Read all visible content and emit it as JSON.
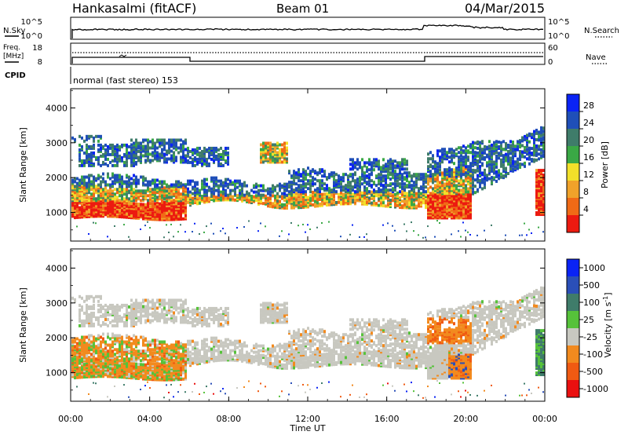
{
  "header": {
    "station": "Hankasalmi (fitACF)",
    "beam": "Beam 01",
    "date": "04/Mar/2015"
  },
  "noise_panel": {
    "left_label": "N.Sky",
    "right_label": "N.Search",
    "left_ticks": [
      "10^5",
      "10^0"
    ],
    "right_ticks": [
      "10^5",
      "10^0"
    ]
  },
  "freq_panel": {
    "left_label_1": "Freq.",
    "left_label_2": "[MHz]",
    "right_label": "Nave",
    "left_ticks": [
      "18",
      "8"
    ],
    "right_ticks": [
      "60",
      "0"
    ]
  },
  "cpid_panel": {
    "label": "CPID",
    "program": "normal (fast stereo) 153"
  },
  "axes": {
    "ylabel": "Slant Range [km]",
    "xlabel": "Time UT",
    "x_ticks": [
      "00:00",
      "04:00",
      "08:00",
      "12:00",
      "16:00",
      "20:00",
      "00:00"
    ],
    "y_ticks": [
      "1000",
      "2000",
      "3000",
      "4000"
    ]
  },
  "colors": {
    "power": [
      "#0a23f5",
      "#1f4fb8",
      "#3f7c6a",
      "#3aa845",
      "#f2e02a",
      "#f0a22a",
      "#f06a16",
      "#ec1a10"
    ],
    "velocity": [
      "#0a23f5",
      "#2a4fb8",
      "#3f7c6a",
      "#56c23a",
      "#c8c8c0",
      "#f28a1e",
      "#f05a12",
      "#ea1010"
    ]
  },
  "chart_data": [
    {
      "type": "heatmap",
      "name": "Power",
      "colorbar_label": "Power [dB]",
      "colorbar_ticks": [
        "28",
        "24",
        "20",
        "16",
        "12",
        "8",
        "4"
      ],
      "range_dB": [
        0,
        32
      ],
      "xlim_hours": [
        0,
        24
      ],
      "ylim_km": [
        180,
        4550
      ],
      "title": ""
    },
    {
      "type": "heatmap",
      "name": "Velocity",
      "colorbar_label": "Velocity [m s-1]",
      "colorbar_ticks": [
        "1000",
        "500",
        "100",
        "25",
        "-25",
        "-100",
        "-500",
        "-1000"
      ],
      "xlim_hours": [
        0,
        24
      ],
      "ylim_km": [
        180,
        4550
      ],
      "title": ""
    }
  ]
}
